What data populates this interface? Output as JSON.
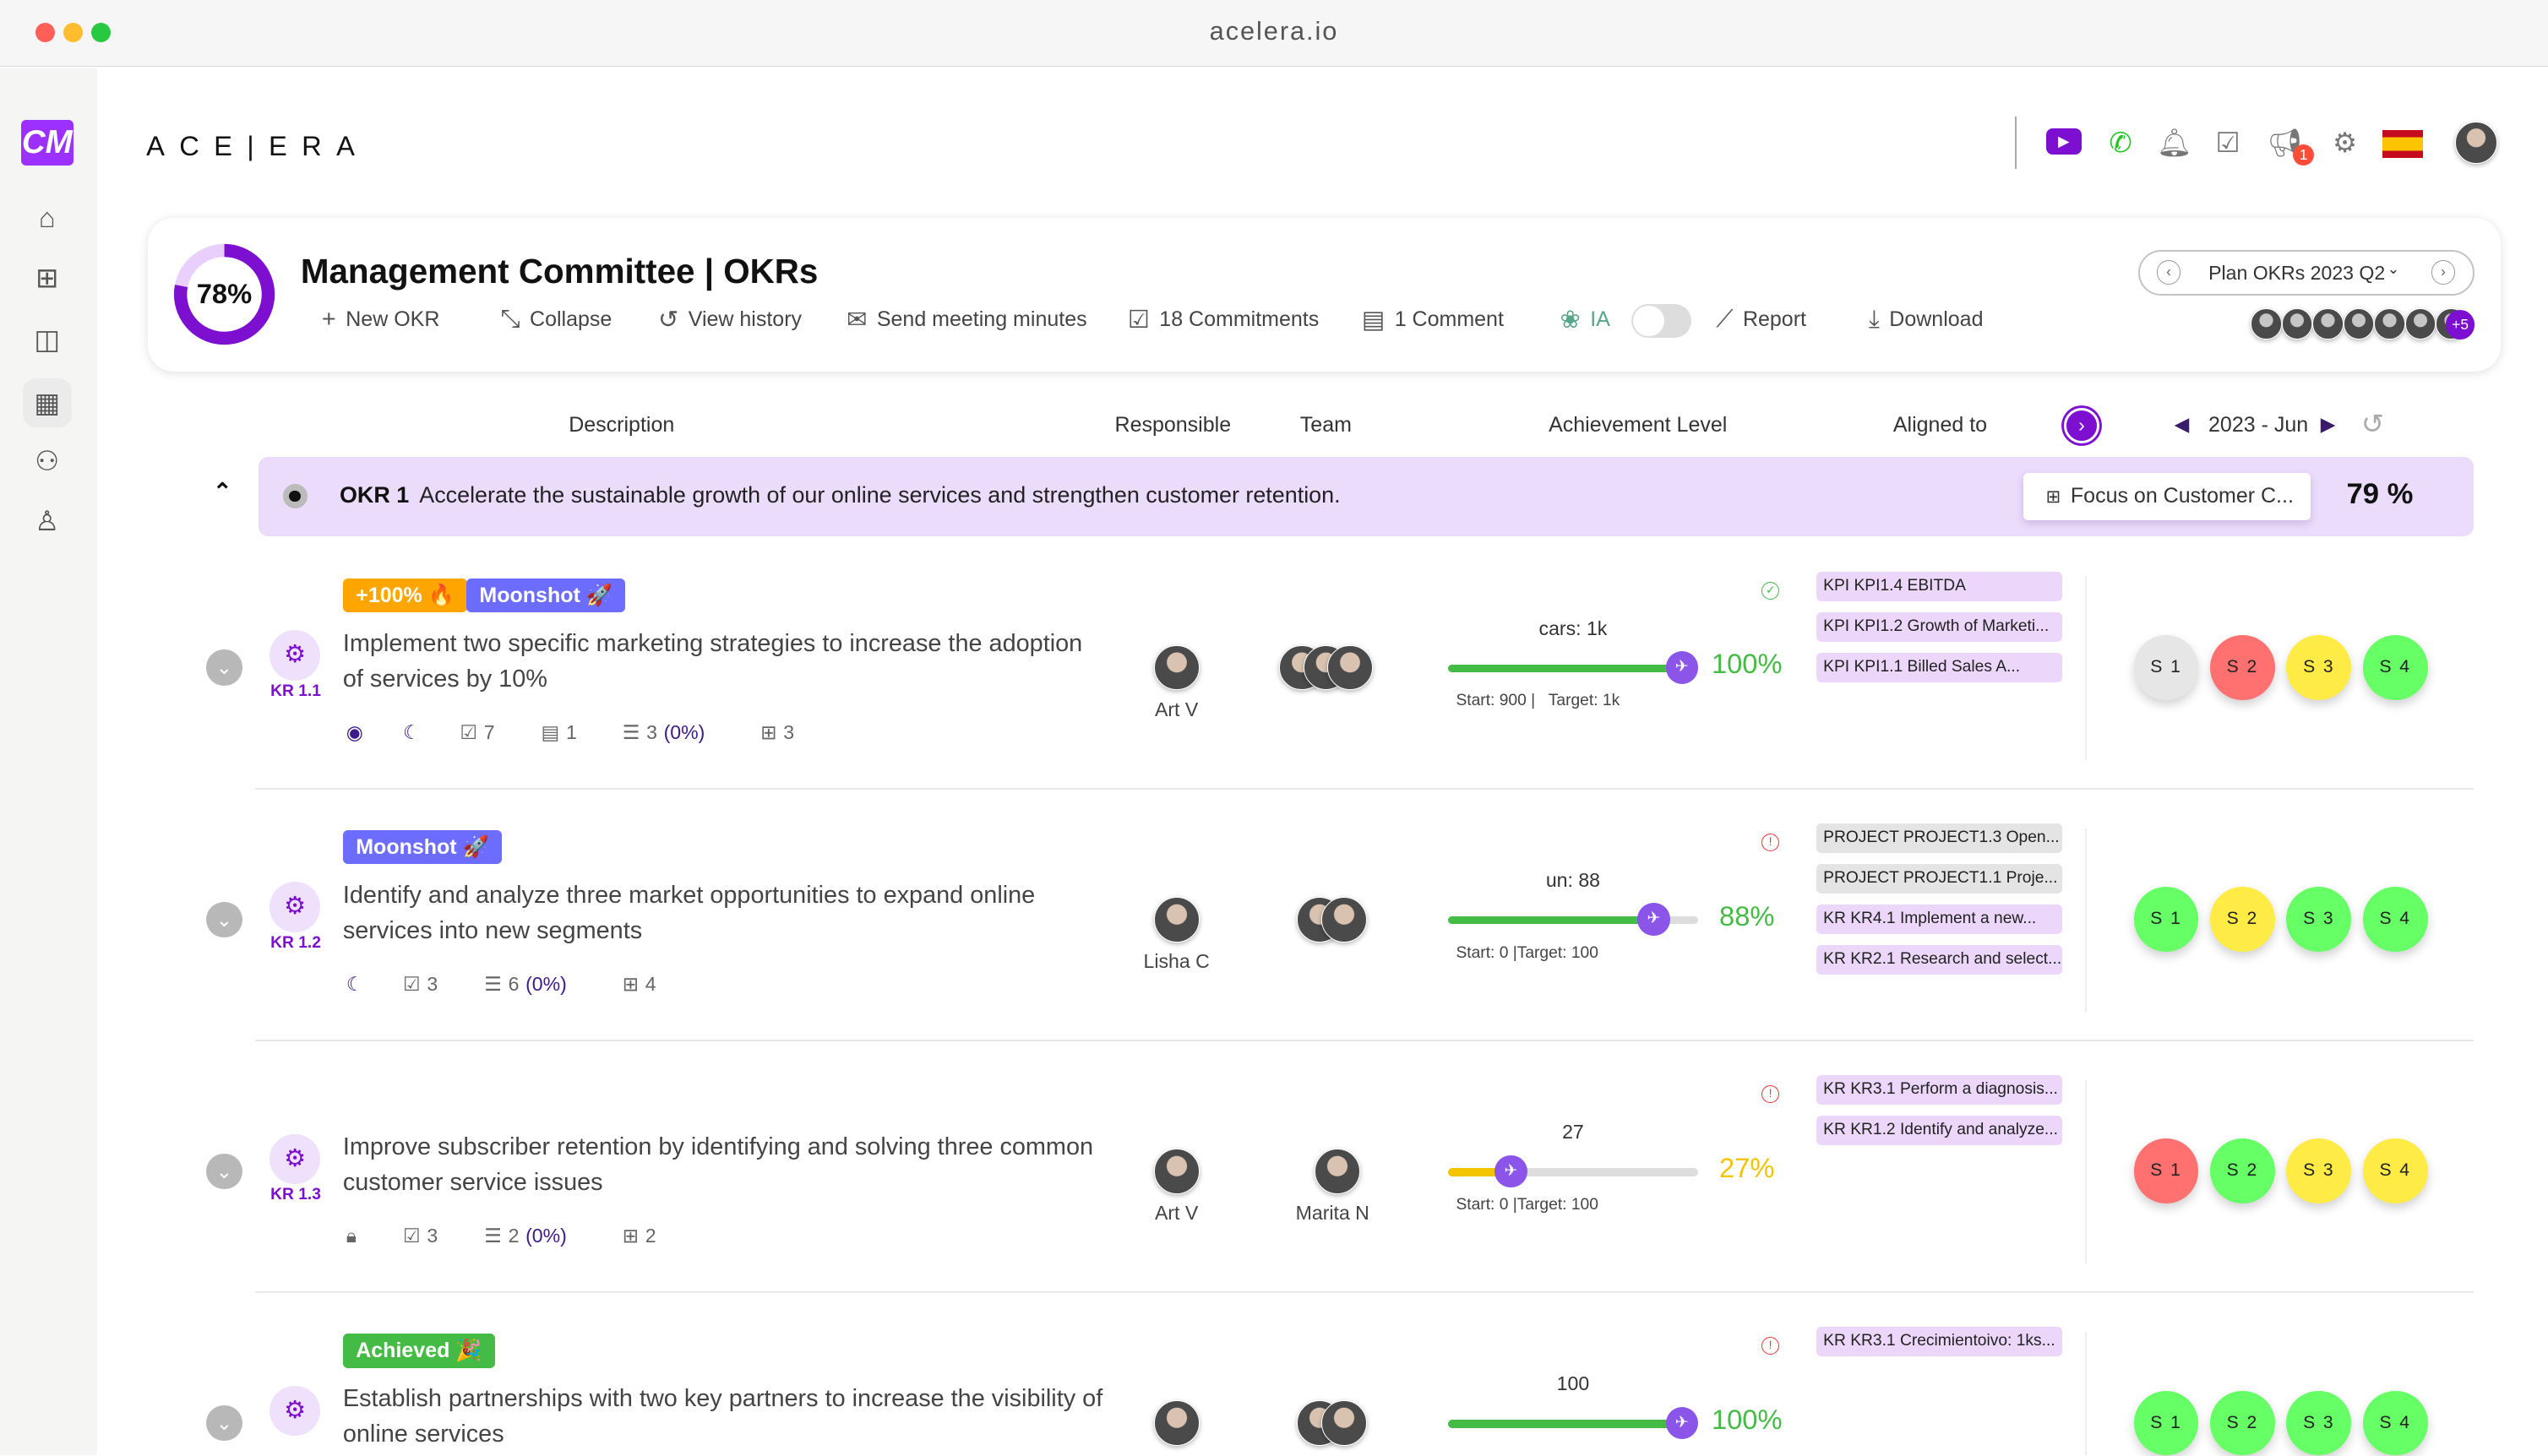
{
  "window": {
    "title": "acelera.io"
  },
  "brand": {
    "logo_text": "ACE|ERA",
    "logo_color": "#9b30ff"
  },
  "sidebar": {
    "items": [
      {
        "icon": "home-icon"
      },
      {
        "icon": "hierarchy-icon"
      },
      {
        "icon": "layout-icon"
      },
      {
        "icon": "building-icon",
        "selected": true
      },
      {
        "icon": "team-icon"
      },
      {
        "icon": "user-icon"
      }
    ]
  },
  "topbar": {
    "notification_badge": "1",
    "icons": [
      "youtube-icon",
      "whatsapp-icon",
      "bell-icon",
      "tasks-icon",
      "megaphone-icon",
      "gear-icon",
      "spain-flag-icon",
      "user-avatar"
    ]
  },
  "header": {
    "progress_percent": 78,
    "progress_label": "78%",
    "title": "Management Committee | OKRs",
    "toolbar": {
      "new_okr": "New OKR",
      "collapse": "Collapse",
      "view_history": "View history",
      "send_minutes": "Send meeting minutes",
      "commitments": "18 Commitments",
      "comments": "1 Comment",
      "ia": "IA",
      "report": "Report",
      "download": "Download"
    },
    "ia_toggle_on": false,
    "plan_selector": "Plan OKRs 2023 Q2",
    "members_more": "+5"
  },
  "columns": {
    "description": "Description",
    "responsible": "Responsible",
    "team": "Team",
    "achievement": "Achievement Level",
    "aligned": "Aligned to",
    "period": "2023 - Jun"
  },
  "okr": {
    "code": "OKR 1",
    "title": "Accelerate the sustainable growth of our online services and strengthen customer retention.",
    "focus": "Focus on Customer C...",
    "percent": "79 %"
  },
  "colors": {
    "accent": "#7c0fd0",
    "okr_bg": "#ecdcfc",
    "green": "#44bb44",
    "yellow": "#f5c400",
    "s_gray": "#e6e6e6",
    "s_red": "#ff7070",
    "s_yellow": "#ffeb45",
    "s_green": "#66ff66"
  },
  "key_results": [
    {
      "code": "KR 1.1",
      "badges": [
        {
          "text": "+100% 🔥",
          "color": "#ffa500"
        },
        {
          "text": "Moonshot 🚀",
          "color": "#6c6cff"
        }
      ],
      "description": "Implement two specific marketing strategies to increase the adoption of services by 10%",
      "meta": [
        {
          "icon": "target-icon"
        },
        {
          "icon": "moon-icon"
        },
        {
          "icon": "checkbox-icon",
          "text": "7"
        },
        {
          "icon": "comment-icon",
          "text": "1"
        },
        {
          "icon": "list-icon",
          "text": "3",
          "extra": "(0%)"
        },
        {
          "icon": "hierarchy-icon",
          "text": "3"
        }
      ],
      "responsible": "Art V",
      "team": [
        "",
        " ",
        ""
      ],
      "metric": "cars: 1k",
      "progress": 100,
      "percent": "100%",
      "bar_color": "#44bb44",
      "start": "Start: 900",
      "target": "Target: 1k",
      "status": "ok",
      "aligned": [
        {
          "text": "KPI KPI1.4 EBITDA",
          "type": "kpi"
        },
        {
          "text": "KPI KPI1.2 Growth of Marketi...",
          "type": "kpi"
        },
        {
          "text": "KPI KPI1.1 Billed Sales A...",
          "type": "kpi"
        }
      ],
      "sprints": [
        {
          "label": "S 1",
          "color": "#e6e6e6"
        },
        {
          "label": "S 2",
          "color": "#ff7070"
        },
        {
          "label": "S 3",
          "color": "#ffeb45"
        },
        {
          "label": "S 4",
          "color": "#66ff66"
        }
      ]
    },
    {
      "code": "KR 1.2",
      "badges": [
        {
          "text": "Moonshot 🚀",
          "color": "#6c6cff"
        }
      ],
      "description": "Identify and analyze three market opportunities to expand online services into new segments",
      "meta": [
        {
          "icon": "moon-icon"
        },
        {
          "icon": "checkbox-icon",
          "text": "3"
        },
        {
          "icon": "list-icon",
          "text": "6",
          "extra": "(0%)"
        },
        {
          "icon": "hierarchy-icon",
          "text": "4"
        }
      ],
      "responsible": "Lisha C",
      "team": [
        "",
        ""
      ],
      "metric": "un: 88",
      "progress": 88,
      "percent": "88%",
      "bar_color": "#44bb44",
      "start": "Start: 0",
      "target": "Target: 100",
      "status": "alert",
      "aligned": [
        {
          "text": "PROJECT PROJECT1.3 Open...",
          "type": "project"
        },
        {
          "text": "PROJECT PROJECT1.1 Proje...",
          "type": "project"
        },
        {
          "text": "KR KR4.1 Implement a new...",
          "type": "kr"
        },
        {
          "text": "KR KR2.1 Research and select...",
          "type": "kr"
        }
      ],
      "sprints": [
        {
          "label": "S 1",
          "color": "#66ff66"
        },
        {
          "label": "S 2",
          "color": "#ffeb45"
        },
        {
          "label": "S 3",
          "color": "#66ff66"
        },
        {
          "label": "S 4",
          "color": "#66ff66"
        }
      ]
    },
    {
      "code": "KR 1.3",
      "badges": [],
      "description": "Improve subscriber retention by identifying and solving three common customer service issues",
      "meta": [
        {
          "icon": "lock-icon"
        },
        {
          "icon": "checkbox-icon",
          "text": "3"
        },
        {
          "icon": "list-icon",
          "text": "2",
          "extra": "(0%)"
        },
        {
          "icon": "hierarchy-icon",
          "text": "2"
        }
      ],
      "responsible": "Art V",
      "team": [
        "Marita N"
      ],
      "metric": "27",
      "progress": 27,
      "percent": "27%",
      "bar_color": "#f5c400",
      "start": "Start: 0",
      "target": "Target: 100",
      "status": "alert",
      "aligned": [
        {
          "text": "KR KR3.1 Perform a diagnosis...",
          "type": "kr"
        },
        {
          "text": "KR KR1.2 Identify and analyze...",
          "type": "kr"
        }
      ],
      "sprints": [
        {
          "label": "S 1",
          "color": "#ff7070"
        },
        {
          "label": "S 2",
          "color": "#66ff66"
        },
        {
          "label": "S 3",
          "color": "#ffeb45"
        },
        {
          "label": "S 4",
          "color": "#ffeb45"
        }
      ]
    },
    {
      "code": "",
      "badges": [
        {
          "text": "Achieved 🎉",
          "color": "#44bb44"
        }
      ],
      "description": "Establish partnerships with two key partners to increase the visibility of online services",
      "meta": [],
      "responsible": "",
      "team": [
        "",
        ""
      ],
      "metric": "100",
      "progress": 100,
      "percent": "100%",
      "bar_color": "#44bb44",
      "start": "",
      "target": "",
      "status": "alert",
      "aligned": [
        {
          "text": "KR KR3.1 Crecimientoivo: 1ks...",
          "type": "kr"
        }
      ],
      "sprints": [
        {
          "label": "S 1",
          "color": "#66ff66"
        },
        {
          "label": "S 2",
          "color": "#66ff66"
        },
        {
          "label": "S 3",
          "color": "#66ff66"
        },
        {
          "label": "S 4",
          "color": "#66ff66"
        }
      ]
    }
  ]
}
